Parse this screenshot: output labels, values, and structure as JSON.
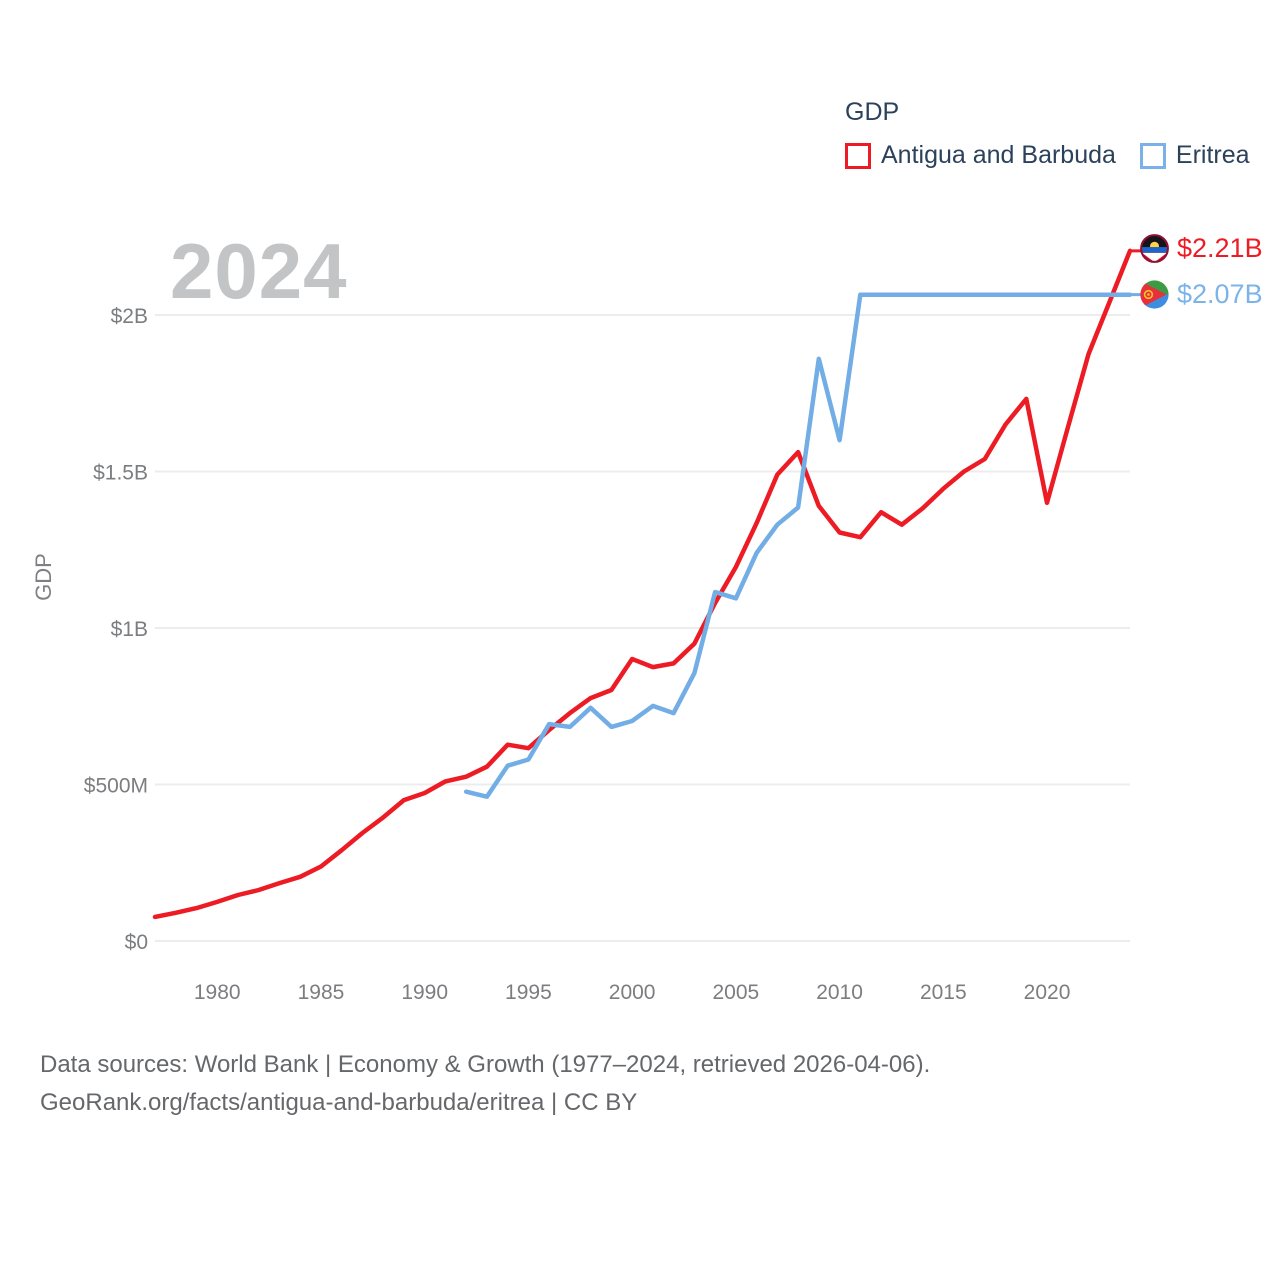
{
  "watermark": "2024",
  "legend": {
    "title": "GDP",
    "items": [
      {
        "label": "Antigua and Barbuda",
        "color": "#ed1c24"
      },
      {
        "label": "Eritrea",
        "color": "#79b1e8"
      }
    ]
  },
  "end_labels": [
    {
      "series": "Antigua and Barbuda",
      "value": "$2.21B",
      "color": "#ed1c24",
      "icon": "antigua-and-barbuda-flag-icon"
    },
    {
      "series": "Eritrea",
      "value": "$2.07B",
      "color": "#7cb4ea",
      "icon": "eritrea-flag-icon"
    }
  ],
  "footer": {
    "line1": "Data sources: World Bank | Economy & Growth (1977–2024, retrieved 2026-04-06).",
    "line2": "GeoRank.org/facts/antigua-and-barbuda/eritrea | CC BY"
  },
  "chart_data": {
    "type": "line",
    "title": "GDP",
    "ylabel": "GDP",
    "xlabel": "",
    "unit": "USD, millions",
    "grid": true,
    "legend_position": "top-right",
    "xlim": [
      1977,
      2024
    ],
    "ylim": [
      0,
      2210
    ],
    "xticks": [
      1980,
      1985,
      1990,
      1995,
      2000,
      2005,
      2010,
      2015,
      2020
    ],
    "yticks": [
      {
        "label": "$0",
        "value": 0
      },
      {
        "label": "$500M",
        "value": 500
      },
      {
        "label": "$1B",
        "value": 1000
      },
      {
        "label": "$1.5B",
        "value": 1500
      },
      {
        "label": "$2B",
        "value": 2000
      }
    ],
    "x": [
      1977,
      1978,
      1979,
      1980,
      1981,
      1982,
      1983,
      1984,
      1985,
      1986,
      1987,
      1988,
      1989,
      1990,
      1991,
      1992,
      1993,
      1994,
      1995,
      1996,
      1997,
      1998,
      1999,
      2000,
      2001,
      2002,
      2003,
      2004,
      2005,
      2006,
      2007,
      2008,
      2009,
      2010,
      2011,
      2012,
      2013,
      2014,
      2015,
      2016,
      2017,
      2018,
      2019,
      2020,
      2021,
      2022,
      2023,
      2024
    ],
    "series": [
      {
        "name": "Antigua and Barbuda",
        "color": "#ed1c24",
        "end_label": "$2.21B",
        "values": [
          77,
          90,
          105,
          125,
          147,
          163,
          185,
          205,
          238,
          290,
          345,
          395,
          450,
          473,
          510,
          525,
          557,
          627,
          616,
          674,
          728,
          776,
          802,
          901,
          875,
          887,
          950,
          1080,
          1195,
          1335,
          1490,
          1562,
          1390,
          1305,
          1290,
          1370,
          1330,
          1382,
          1445,
          1500,
          1540,
          1650,
          1732,
          1400,
          1640,
          1875,
          2040,
          2205
        ]
      },
      {
        "name": "Eritrea",
        "color": "#72aee5",
        "end_label": "$2.07B",
        "values": [
          null,
          null,
          null,
          null,
          null,
          null,
          null,
          null,
          null,
          null,
          null,
          null,
          null,
          null,
          null,
          477,
          461,
          560,
          580,
          693,
          684,
          745,
          684,
          703,
          751,
          728,
          856,
          1115,
          1095,
          1240,
          1330,
          1385,
          1860,
          1600,
          2065,
          2065,
          2065,
          2065,
          2065,
          2065,
          2065,
          2065,
          2065,
          2065,
          2065,
          2065,
          2065,
          2065
        ]
      }
    ]
  }
}
